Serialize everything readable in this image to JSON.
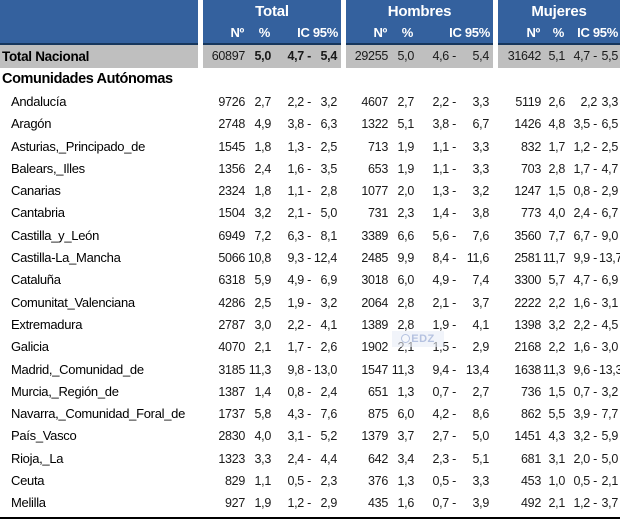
{
  "table": {
    "col_groups": [
      {
        "title": "Total"
      },
      {
        "title": "Hombres"
      },
      {
        "title": "Mujeres"
      }
    ],
    "sub_headers": {
      "n": "Nº",
      "pct": "%",
      "ic": "IC 95%"
    },
    "total_row": {
      "label": "Total Nacional",
      "groups": [
        [
          "60897",
          "5,0",
          "4,7 -",
          "5,4"
        ],
        [
          "29255",
          "5,0",
          "4,6 -",
          "5,4"
        ],
        [
          "31642",
          "5,1",
          "4,7 -",
          "5,5"
        ]
      ]
    },
    "section_header": "Comunidades Autónomas",
    "rows": [
      {
        "label": "Andalucía",
        "groups": [
          [
            "9726",
            "2,7",
            "2,2 -",
            "3,2"
          ],
          [
            "4607",
            "2,7",
            "2,2 -",
            "3,3"
          ],
          [
            "5119",
            "2,6",
            "2,2",
            "3,3"
          ]
        ]
      },
      {
        "label": "Aragón",
        "groups": [
          [
            "2748",
            "4,9",
            "3,8 -",
            "6,3"
          ],
          [
            "1322",
            "5,1",
            "3,8 -",
            "6,7"
          ],
          [
            "1426",
            "4,8",
            "3,5 -",
            "6,5"
          ]
        ]
      },
      {
        "label": "Asturias,_Principado_de",
        "groups": [
          [
            "1545",
            "1,8",
            "1,3 -",
            "2,5"
          ],
          [
            "713",
            "1,9",
            "1,1 -",
            "3,3"
          ],
          [
            "832",
            "1,7",
            "1,2 -",
            "2,5"
          ]
        ]
      },
      {
        "label": "Balears,_Illes",
        "groups": [
          [
            "1356",
            "2,4",
            "1,6 -",
            "3,5"
          ],
          [
            "653",
            "1,9",
            "1,1 -",
            "3,3"
          ],
          [
            "703",
            "2,8",
            "1,7 -",
            "4,7"
          ]
        ]
      },
      {
        "label": "Canarias",
        "groups": [
          [
            "2324",
            "1,8",
            "1,1 -",
            "2,8"
          ],
          [
            "1077",
            "2,0",
            "1,3 -",
            "3,2"
          ],
          [
            "1247",
            "1,5",
            "0,8 -",
            "2,9"
          ]
        ]
      },
      {
        "label": "Cantabria",
        "groups": [
          [
            "1504",
            "3,2",
            "2,1 -",
            "5,0"
          ],
          [
            "731",
            "2,3",
            "1,4 -",
            "3,8"
          ],
          [
            "773",
            "4,0",
            "2,4 -",
            "6,7"
          ]
        ]
      },
      {
        "label": "Castilla_y_León",
        "groups": [
          [
            "6949",
            "7,2",
            "6,3 -",
            "8,1"
          ],
          [
            "3389",
            "6,6",
            "5,6 -",
            "7,6"
          ],
          [
            "3560",
            "7,7",
            "6,7 -",
            "9,0"
          ]
        ]
      },
      {
        "label": "Castilla-La_Mancha",
        "groups": [
          [
            "5066",
            "10,8",
            "9,3 -",
            "12,4"
          ],
          [
            "2485",
            "9,9",
            "8,4 -",
            "11,6"
          ],
          [
            "2581",
            "11,7",
            "9,9 -",
            "13,7"
          ]
        ]
      },
      {
        "label": "Cataluña",
        "groups": [
          [
            "6318",
            "5,9",
            "4,9 -",
            "6,9"
          ],
          [
            "3018",
            "6,0",
            "4,9 -",
            "7,4"
          ],
          [
            "3300",
            "5,7",
            "4,7 -",
            "6,9"
          ]
        ]
      },
      {
        "label": "Comunitat_Valenciana",
        "groups": [
          [
            "4286",
            "2,5",
            "1,9 -",
            "3,2"
          ],
          [
            "2064",
            "2,8",
            "2,1 -",
            "3,7"
          ],
          [
            "2222",
            "2,2",
            "1,6 -",
            "3,1"
          ]
        ]
      },
      {
        "label": "Extremadura",
        "groups": [
          [
            "2787",
            "3,0",
            "2,2 -",
            "4,1"
          ],
          [
            "1389",
            "2,8",
            "1,9 -",
            "4,1"
          ],
          [
            "1398",
            "3,2",
            "2,2 -",
            "4,5"
          ]
        ]
      },
      {
        "label": "Galicia",
        "groups": [
          [
            "4070",
            "2,1",
            "1,7 -",
            "2,6"
          ],
          [
            "1902",
            "2,1",
            "1,5 -",
            "2,9"
          ],
          [
            "2168",
            "2,2",
            "1,6 -",
            "3,0"
          ]
        ]
      },
      {
        "label": "Madrid,_Comunidad_de",
        "groups": [
          [
            "3185",
            "11,3",
            "9,8 -",
            "13,0"
          ],
          [
            "1547",
            "11,3",
            "9,4 -",
            "13,4"
          ],
          [
            "1638",
            "11,3",
            "9,6 -",
            "13,3"
          ]
        ]
      },
      {
        "label": "Murcia,_Región_de",
        "groups": [
          [
            "1387",
            "1,4",
            "0,8 -",
            "2,4"
          ],
          [
            "651",
            "1,3",
            "0,7 -",
            "2,7"
          ],
          [
            "736",
            "1,5",
            "0,7 -",
            "3,2"
          ]
        ]
      },
      {
        "label": "Navarra,_Comunidad_Foral_de",
        "groups": [
          [
            "1737",
            "5,8",
            "4,3 -",
            "7,6"
          ],
          [
            "875",
            "6,0",
            "4,2 -",
            "8,6"
          ],
          [
            "862",
            "5,5",
            "3,9 -",
            "7,7"
          ]
        ]
      },
      {
        "label": "País_Vasco",
        "groups": [
          [
            "2830",
            "4,0",
            "3,1 -",
            "5,2"
          ],
          [
            "1379",
            "3,7",
            "2,7 -",
            "5,0"
          ],
          [
            "1451",
            "4,3",
            "3,2 -",
            "5,9"
          ]
        ]
      },
      {
        "label": "Rioja,_La",
        "groups": [
          [
            "1323",
            "3,3",
            "2,4 -",
            "4,4"
          ],
          [
            "642",
            "3,4",
            "2,3 -",
            "5,1"
          ],
          [
            "681",
            "3,1",
            "2,0 -",
            "5,0"
          ]
        ]
      },
      {
        "label": "Ceuta",
        "groups": [
          [
            "829",
            "1,1",
            "0,5 -",
            "2,3"
          ],
          [
            "376",
            "1,3",
            "0,5 -",
            "3,3"
          ],
          [
            "453",
            "1,0",
            "0,5 -",
            "2,1"
          ]
        ]
      },
      {
        "label": "Melilla",
        "groups": [
          [
            "927",
            "1,9",
            "1,2 -",
            "2,9"
          ],
          [
            "435",
            "1,6",
            "0,7 -",
            "3,9"
          ],
          [
            "492",
            "2,1",
            "1,2 -",
            "3,7"
          ]
        ]
      }
    ]
  },
  "watermark": {
    "text": "EDZ"
  },
  "colors": {
    "header_blue": "#34619E",
    "header_border_navy": "#17375D",
    "total_row_gray": "#BFBFBF",
    "bottom_rule_black": "#000000"
  }
}
